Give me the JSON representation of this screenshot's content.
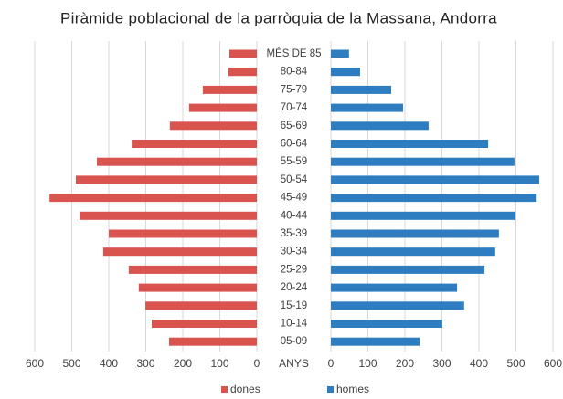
{
  "chart_data": {
    "type": "pyramid",
    "title": "Piràmide poblacional de la parròquia de la Massana, Andorra",
    "category_label": "ANYS",
    "categories": [
      "MÉS DE 85",
      "80-84",
      "75-79",
      "70-74",
      "65-69",
      "60-64",
      "55-59",
      "50-54",
      "45-49",
      "40-44",
      "35-39",
      "30-34",
      "25-29",
      "20-24",
      "15-19",
      "10-14",
      "05-09"
    ],
    "series": [
      {
        "name": "dones",
        "color": "#d9534f",
        "side": "left",
        "values": [
          74,
          77,
          146,
          183,
          235,
          338,
          432,
          489,
          560,
          479,
          400,
          415,
          346,
          319,
          301,
          284,
          237
        ]
      },
      {
        "name": "homes",
        "color": "#2e7dc0",
        "side": "right",
        "values": [
          49,
          79,
          163,
          195,
          264,
          425,
          496,
          563,
          556,
          499,
          454,
          444,
          415,
          341,
          360,
          301,
          240
        ]
      }
    ],
    "xlim": [
      0,
      600
    ],
    "xticks": [
      0,
      100,
      200,
      300,
      400,
      500,
      600
    ],
    "grid": true,
    "legend": "bottom"
  }
}
